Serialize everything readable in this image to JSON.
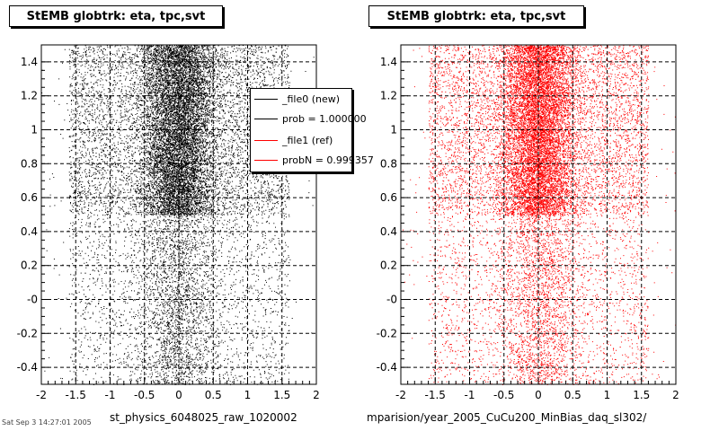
{
  "chart_data": [
    {
      "type": "scatter",
      "title": "StEMB globtrk: eta, tpc,svt",
      "xlabel": "st_physics_6048025_raw_1020002",
      "ylabel": "",
      "xlim": [
        -2,
        2
      ],
      "ylim": [
        -0.5,
        1.5
      ],
      "x_ticks": [
        "-2",
        "-1.5",
        "-1",
        "-0.5",
        "0",
        "0.5",
        "1",
        "1.5",
        "2"
      ],
      "y_ticks": [
        "-0.4",
        "-0.2",
        "-0",
        "0.2",
        "0.4",
        "0.6",
        "0.8",
        "1",
        "1.2",
        "1.4"
      ],
      "grid": true,
      "color": "#000000",
      "density": {
        "x_range": [
          -1.6,
          1.6
        ],
        "dense_band_y": [
          0.5,
          1.5
        ],
        "sparse_band_y": [
          -0.5,
          0.5
        ],
        "peak_x": 0.0
      }
    },
    {
      "type": "scatter",
      "title": "StEMB globtrk: eta, tpc,svt",
      "xlabel": "mparision/year_2005_CuCu200_MinBias_daq_sl302/",
      "ylabel": "",
      "xlim": [
        -2,
        2
      ],
      "ylim": [
        -0.5,
        1.5
      ],
      "x_ticks": [
        "-2",
        "-1.5",
        "-1",
        "-0.5",
        "0",
        "0.5",
        "1",
        "1.5",
        "2"
      ],
      "y_ticks": [
        "-0.4",
        "-0.2",
        "-0",
        "0.2",
        "0.4",
        "0.6",
        "0.8",
        "1",
        "1.2",
        "1.4"
      ],
      "grid": true,
      "color": "#ff0000",
      "density": {
        "x_range": [
          -1.6,
          1.6
        ],
        "dense_band_y": [
          0.5,
          1.5
        ],
        "sparse_band_y": [
          -0.5,
          0.5
        ],
        "peak_x": 0.0
      }
    }
  ],
  "legend": {
    "entries": [
      {
        "label": "_file0 (new)",
        "color": "#000000"
      },
      {
        "label": "prob = 1.000000",
        "color": "#000000"
      },
      {
        "label": "_file1 (ref)",
        "color": "#ff0000"
      },
      {
        "label": "probN = 0.999357",
        "color": "#ff0000"
      }
    ]
  },
  "corner_text": "Sat Sep 3 14:27:01 2005"
}
